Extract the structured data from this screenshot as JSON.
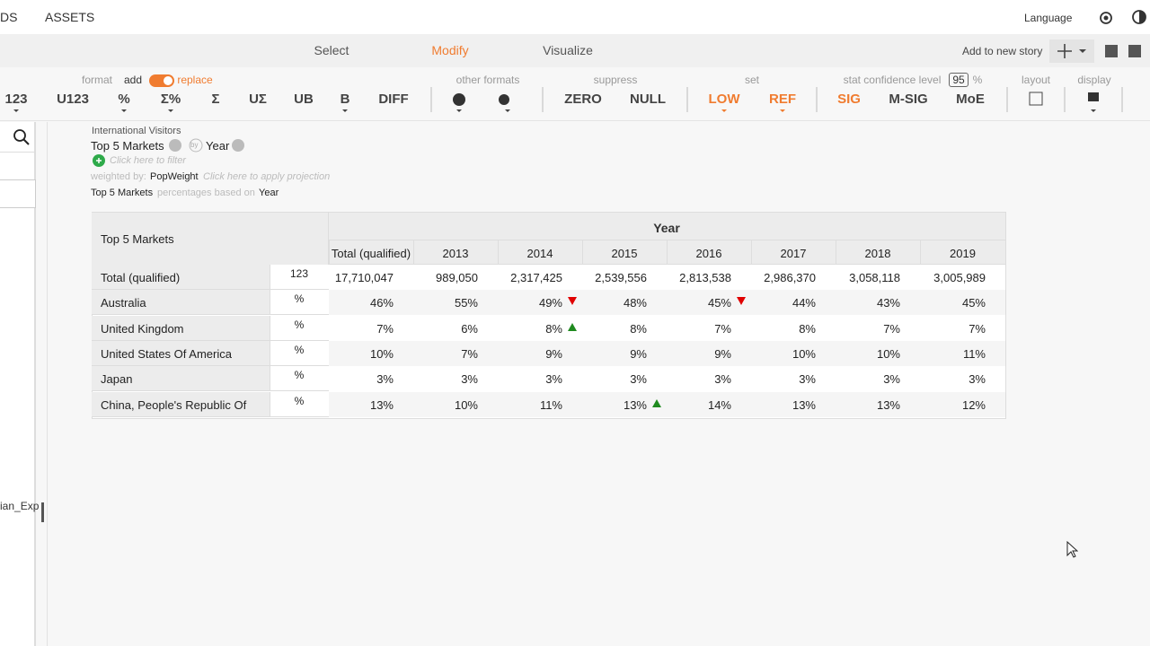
{
  "nav": {
    "items": [
      "DS",
      "ASSETS"
    ],
    "language": "Language"
  },
  "tabs": [
    "Select",
    "Modify",
    "Visualize"
  ],
  "story": "Add to new story",
  "toolbar": {
    "labels": [
      "format",
      "add",
      "replace",
      "other formats",
      "suppress",
      "set",
      "stat confidence level",
      "95",
      "%",
      "layout",
      "display"
    ],
    "buttons": [
      "123",
      "U123",
      "%",
      "Σ%",
      "Σ",
      "UΣ",
      "UB",
      "B",
      "DIFF",
      "ZERO",
      "NULL",
      "LOW",
      "REF",
      "SIG",
      "M-SIG",
      "MoE"
    ]
  },
  "query": {
    "source": "International Visitors",
    "rows": "Top 5 Markets",
    "by": "by",
    "columns": "Year",
    "filter": "Click here to filter",
    "weighted": "weighted by:",
    "weight": "PopWeight",
    "projection": "Click here to apply projection",
    "base_rows": "Top 5 Markets",
    "base_text": "percentages based on",
    "base_cols": "Year"
  },
  "sidebar": {
    "label": "ian_Exp"
  },
  "table": {
    "corner": "Top 5 Markets",
    "group": "Year",
    "columns": [
      "Total (qualified)",
      "2013",
      "2014",
      "2015",
      "2016",
      "2017",
      "2018",
      "2019"
    ],
    "rows": [
      {
        "label": "Total (qualified)",
        "stat": "123",
        "cells": [
          "17,710,047",
          "989,050",
          "2,317,425",
          "2,539,556",
          "2,813,538",
          "2,986,370",
          "3,058,118",
          "3,005,989"
        ]
      },
      {
        "label": "Australia",
        "stat": "%",
        "cells": [
          "46%",
          "55%",
          "49%",
          "48%",
          "45%",
          "44%",
          "43%",
          "45%"
        ]
      },
      {
        "label": "United Kingdom",
        "stat": "%",
        "cells": [
          "7%",
          "6%",
          "8%",
          "8%",
          "7%",
          "8%",
          "7%",
          "7%"
        ]
      },
      {
        "label": "United States Of America",
        "stat": "%",
        "cells": [
          "10%",
          "7%",
          "9%",
          "9%",
          "9%",
          "10%",
          "10%",
          "11%"
        ]
      },
      {
        "label": "Japan",
        "stat": "%",
        "cells": [
          "3%",
          "3%",
          "3%",
          "3%",
          "3%",
          "3%",
          "3%",
          "3%"
        ]
      },
      {
        "label": "China, People's Republic Of",
        "stat": "%",
        "cells": [
          "13%",
          "10%",
          "11%",
          "13%",
          "14%",
          "13%",
          "13%",
          "12%"
        ]
      }
    ]
  }
}
